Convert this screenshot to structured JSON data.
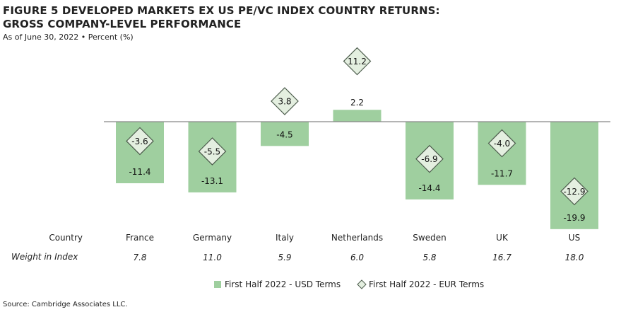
{
  "title_line1": "FIGURE 5  DEVELOPED MARKETS EX US PE/VC INDEX COUNTRY RETURNS:",
  "title_line2": "GROSS COMPANY-LEVEL PERFORMANCE",
  "subtitle": "As of June 30, 2022 • Percent (%)",
  "source": "Source: Cambridge Associates LLC.",
  "colors": {
    "bar": "#9fcf9f",
    "diamond_fill": "#e4efe0",
    "diamond_stroke": "#4d5d4d",
    "axis": "#888888"
  },
  "chart_data": {
    "type": "bar",
    "categories": [
      "France",
      "Germany",
      "Italy",
      "Netherlands",
      "Sweden",
      "UK",
      "US"
    ],
    "row_labels": {
      "country": "Country",
      "weight": "Weight in Index"
    },
    "weights": [
      "7.8",
      "11.0",
      "5.9",
      "6.0",
      "5.8",
      "16.7",
      "18.0"
    ],
    "series": [
      {
        "name": "First Half 2022 - USD Terms",
        "marker": "bar",
        "values": [
          -11.4,
          -13.1,
          -4.5,
          2.2,
          -14.4,
          -11.7,
          -19.9
        ]
      },
      {
        "name": "First Half 2022 - EUR Terms",
        "marker": "diamond",
        "values": [
          -3.6,
          -5.5,
          3.8,
          11.2,
          -6.9,
          -4.0,
          -12.9
        ]
      }
    ],
    "legend_position": "bottom"
  }
}
